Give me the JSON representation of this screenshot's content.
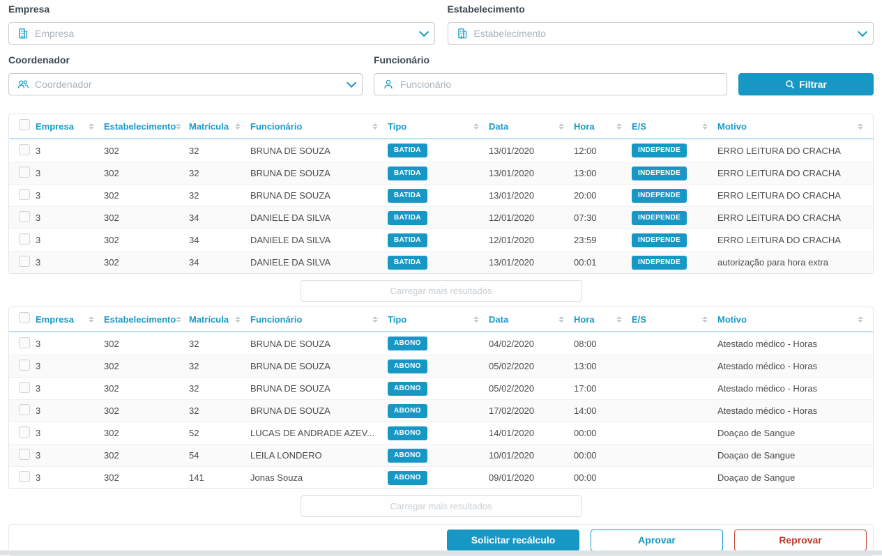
{
  "colors": {
    "accent": "#1798c4",
    "header_text": "#1b9ac7",
    "danger": "#c0392b",
    "header_underline": "#bce2ef"
  },
  "filters": {
    "empresa": {
      "label": "Empresa",
      "placeholder": "Empresa",
      "icon": "building-icon"
    },
    "estabelecimento": {
      "label": "Estabelecimento",
      "placeholder": "Estabelecimento",
      "icon": "building-icon"
    },
    "coordenador": {
      "label": "Coordenador",
      "placeholder": "Coordenador",
      "icon": "people-icon"
    },
    "funcionario": {
      "label": "Funcionário",
      "placeholder": "Funcionário",
      "icon": "person-icon"
    },
    "filter_button_label": "Filtrar"
  },
  "table_headers": [
    "Empresa",
    "Estabelecimento",
    "Matrícula",
    "Funcionário",
    "Tipo",
    "Data",
    "Hora",
    "E/S",
    "Motivo"
  ],
  "tables": [
    {
      "name": "batidas",
      "load_more_label": "Carregar mais resultados",
      "rows": [
        {
          "empresa": "3",
          "estabelecimento": "302",
          "matricula": "32",
          "funcionario": "BRUNA DE SOUZA",
          "tipo": "BATIDA",
          "data": "13/01/2020",
          "hora": "12:00",
          "es": "INDEPENDE",
          "motivo": "ERRO LEITURA DO CRACHA"
        },
        {
          "empresa": "3",
          "estabelecimento": "302",
          "matricula": "32",
          "funcionario": "BRUNA DE SOUZA",
          "tipo": "BATIDA",
          "data": "13/01/2020",
          "hora": "13:00",
          "es": "INDEPENDE",
          "motivo": "ERRO LEITURA DO CRACHA"
        },
        {
          "empresa": "3",
          "estabelecimento": "302",
          "matricula": "32",
          "funcionario": "BRUNA DE SOUZA",
          "tipo": "BATIDA",
          "data": "13/01/2020",
          "hora": "20:00",
          "es": "INDEPENDE",
          "motivo": "ERRO LEITURA DO CRACHA"
        },
        {
          "empresa": "3",
          "estabelecimento": "302",
          "matricula": "34",
          "funcionario": "DANIELE DA SILVA",
          "tipo": "BATIDA",
          "data": "12/01/2020",
          "hora": "07:30",
          "es": "INDEPENDE",
          "motivo": "ERRO LEITURA DO CRACHA"
        },
        {
          "empresa": "3",
          "estabelecimento": "302",
          "matricula": "34",
          "funcionario": "DANIELE DA SILVA",
          "tipo": "BATIDA",
          "data": "12/01/2020",
          "hora": "23:59",
          "es": "INDEPENDE",
          "motivo": "ERRO LEITURA DO CRACHA"
        },
        {
          "empresa": "3",
          "estabelecimento": "302",
          "matricula": "34",
          "funcionario": "DANIELE DA SILVA",
          "tipo": "BATIDA",
          "data": "13/01/2020",
          "hora": "00:01",
          "es": "INDEPENDE",
          "motivo": "autorização para hora extra"
        }
      ]
    },
    {
      "name": "abonos",
      "load_more_label": "Carregar mais resultados",
      "rows": [
        {
          "empresa": "3",
          "estabelecimento": "302",
          "matricula": "32",
          "funcionario": "BRUNA DE SOUZA",
          "tipo": "ABONO",
          "data": "04/02/2020",
          "hora": "08:00",
          "es": "",
          "motivo": "Atestado médico - Horas"
        },
        {
          "empresa": "3",
          "estabelecimento": "302",
          "matricula": "32",
          "funcionario": "BRUNA DE SOUZA",
          "tipo": "ABONO",
          "data": "05/02/2020",
          "hora": "13:00",
          "es": "",
          "motivo": "Atestado médico - Horas"
        },
        {
          "empresa": "3",
          "estabelecimento": "302",
          "matricula": "32",
          "funcionario": "BRUNA DE SOUZA",
          "tipo": "ABONO",
          "data": "05/02/2020",
          "hora": "17:00",
          "es": "",
          "motivo": "Atestado médico - Horas"
        },
        {
          "empresa": "3",
          "estabelecimento": "302",
          "matricula": "32",
          "funcionario": "BRUNA DE SOUZA",
          "tipo": "ABONO",
          "data": "17/02/2020",
          "hora": "14:00",
          "es": "",
          "motivo": "Atestado médico - Horas"
        },
        {
          "empresa": "3",
          "estabelecimento": "302",
          "matricula": "52",
          "funcionario": "LUCAS DE ANDRADE AZEV...",
          "tipo": "ABONO",
          "data": "14/01/2020",
          "hora": "00:00",
          "es": "",
          "motivo": "Doaçao de Sangue"
        },
        {
          "empresa": "3",
          "estabelecimento": "302",
          "matricula": "54",
          "funcionario": "LEILA LONDERO",
          "tipo": "ABONO",
          "data": "10/01/2020",
          "hora": "00:00",
          "es": "",
          "motivo": "Doaçao de Sangue"
        },
        {
          "empresa": "3",
          "estabelecimento": "302",
          "matricula": "141",
          "funcionario": "Jonas Souza",
          "tipo": "ABONO",
          "data": "09/01/2020",
          "hora": "00:00",
          "es": "",
          "motivo": "Doaçao de Sangue"
        }
      ]
    }
  ],
  "footer": {
    "recalc_label": "Solicitar recálculo",
    "approve_label": "Aprovar",
    "reject_label": "Reprovar"
  }
}
